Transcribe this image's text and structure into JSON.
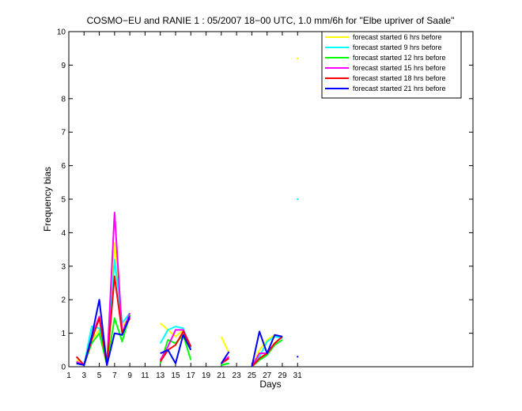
{
  "chart_data": {
    "type": "line",
    "title": "COSMO−EU and RANIE 1 : 05/2007 18−00 UTC, 1.0 mm/6h for \"Elbe upriver of Saale\"",
    "xlabel": "Days",
    "ylabel": "Frequency bias",
    "xlim": [
      1,
      54
    ],
    "ylim": [
      0,
      10
    ],
    "x_ticks": [
      1,
      3,
      5,
      7,
      9,
      11,
      13,
      15,
      17,
      19,
      21,
      23,
      25,
      27,
      29,
      31
    ],
    "y_ticks": [
      0,
      1,
      2,
      3,
      4,
      5,
      6,
      7,
      8,
      9,
      10
    ],
    "grid": false,
    "legend_position": "top-right",
    "series": [
      {
        "name": "forecast started 6 hrs before",
        "color": "#ffff00",
        "points": [
          [
            2,
            0.2
          ],
          [
            3,
            0.05
          ],
          [
            4,
            0.8
          ],
          [
            5,
            1.1
          ],
          [
            6,
            0.05
          ],
          [
            7,
            3.7
          ],
          [
            8,
            1.2
          ],
          [
            9,
            1.5
          ],
          [
            null,
            null
          ],
          [
            13,
            1.3
          ],
          [
            14,
            1.1
          ],
          [
            15,
            0.9
          ],
          [
            16,
            1.1
          ],
          [
            17,
            0.6
          ],
          [
            null,
            null
          ],
          [
            21,
            0.9
          ],
          [
            22,
            0.4
          ],
          [
            null,
            null
          ],
          [
            25,
            0.0
          ],
          [
            26,
            0.5
          ],
          [
            27,
            0.8
          ],
          [
            28,
            0.95
          ],
          [
            29,
            0.9
          ],
          [
            null,
            null
          ],
          [
            31,
            9.2
          ]
        ]
      },
      {
        "name": "forecast started 9 hrs before",
        "color": "#00ffff",
        "points": [
          [
            2,
            0.15
          ],
          [
            3,
            0.05
          ],
          [
            4,
            1.2
          ],
          [
            5,
            1.15
          ],
          [
            6,
            0.05
          ],
          [
            7,
            3.2
          ],
          [
            8,
            1.3
          ],
          [
            9,
            1.6
          ],
          [
            null,
            null
          ],
          [
            13,
            0.7
          ],
          [
            14,
            1.1
          ],
          [
            15,
            1.2
          ],
          [
            16,
            1.15
          ],
          [
            17,
            0.55
          ],
          [
            null,
            null
          ],
          [
            21,
            0.05
          ],
          [
            22,
            0.1
          ],
          [
            null,
            null
          ],
          [
            25,
            0.0
          ],
          [
            26,
            0.3
          ],
          [
            27,
            0.75
          ],
          [
            28,
            0.9
          ],
          [
            29,
            0.85
          ],
          [
            null,
            null
          ],
          [
            31,
            5.0
          ]
        ]
      },
      {
        "name": "forecast started 12 hrs before",
        "color": "#00ff00",
        "points": [
          [
            2,
            0.1
          ],
          [
            3,
            0.05
          ],
          [
            4,
            0.7
          ],
          [
            5,
            1.0
          ],
          [
            6,
            0.05
          ],
          [
            7,
            1.45
          ],
          [
            8,
            0.75
          ],
          [
            9,
            1.55
          ],
          [
            null,
            null
          ],
          [
            13,
            0.1
          ],
          [
            14,
            0.8
          ],
          [
            15,
            0.7
          ],
          [
            16,
            0.95
          ],
          [
            17,
            0.2
          ],
          [
            null,
            null
          ],
          [
            21,
            0.05
          ],
          [
            22,
            0.1
          ],
          [
            null,
            null
          ],
          [
            25,
            0.0
          ],
          [
            26,
            0.2
          ],
          [
            27,
            0.35
          ],
          [
            28,
            0.65
          ],
          [
            29,
            0.8
          ]
        ]
      },
      {
        "name": "forecast started 15 hrs before",
        "color": "#ff00ff",
        "points": [
          [
            2,
            0.15
          ],
          [
            3,
            0.05
          ],
          [
            4,
            0.9
          ],
          [
            5,
            1.5
          ],
          [
            6,
            0.05
          ],
          [
            7,
            4.6
          ],
          [
            8,
            1.0
          ],
          [
            9,
            1.6
          ],
          [
            null,
            null
          ],
          [
            13,
            0.2
          ],
          [
            14,
            0.6
          ],
          [
            15,
            1.1
          ],
          [
            16,
            1.1
          ],
          [
            17,
            0.6
          ],
          [
            null,
            null
          ],
          [
            21,
            0.1
          ],
          [
            22,
            0.3
          ],
          [
            null,
            null
          ],
          [
            25,
            0.0
          ],
          [
            26,
            0.4
          ],
          [
            27,
            0.4
          ],
          [
            28,
            0.7
          ],
          [
            29,
            0.9
          ]
        ]
      },
      {
        "name": "forecast started 18 hrs before",
        "color": "#ff0000",
        "points": [
          [
            2,
            0.3
          ],
          [
            3,
            0.05
          ],
          [
            4,
            0.8
          ],
          [
            5,
            1.45
          ],
          [
            6,
            0.05
          ],
          [
            7,
            2.7
          ],
          [
            8,
            1.0
          ],
          [
            9,
            1.45
          ],
          [
            null,
            null
          ],
          [
            13,
            0.15
          ],
          [
            14,
            0.5
          ],
          [
            15,
            0.65
          ],
          [
            16,
            1.05
          ],
          [
            17,
            0.6
          ],
          [
            null,
            null
          ],
          [
            21,
            0.1
          ],
          [
            22,
            0.25
          ],
          [
            null,
            null
          ],
          [
            25,
            0.0
          ],
          [
            26,
            0.25
          ],
          [
            27,
            0.4
          ],
          [
            28,
            0.7
          ],
          [
            29,
            0.9
          ]
        ]
      },
      {
        "name": "forecast started 21 hrs before",
        "color": "#0000ff",
        "points": [
          [
            2,
            0.1
          ],
          [
            3,
            0.05
          ],
          [
            4,
            0.9
          ],
          [
            5,
            2.0
          ],
          [
            6,
            0.05
          ],
          [
            7,
            1.0
          ],
          [
            8,
            0.95
          ],
          [
            9,
            1.5
          ],
          [
            null,
            null
          ],
          [
            13,
            0.4
          ],
          [
            14,
            0.5
          ],
          [
            15,
            0.1
          ],
          [
            16,
            0.95
          ],
          [
            17,
            0.5
          ],
          [
            null,
            null
          ],
          [
            21,
            0.1
          ],
          [
            22,
            0.45
          ],
          [
            null,
            null
          ],
          [
            25,
            0.0
          ],
          [
            26,
            1.05
          ],
          [
            27,
            0.4
          ],
          [
            28,
            0.95
          ],
          [
            29,
            0.9
          ],
          [
            null,
            null
          ],
          [
            31,
            0.3
          ]
        ]
      }
    ]
  }
}
